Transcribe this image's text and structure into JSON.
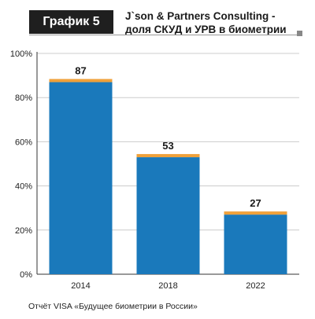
{
  "header": {
    "badge": "График 5",
    "title_line1": "J`son & Partners Consulting -",
    "title_line2": "доля СКУД и УРВ в биометрии"
  },
  "source": "Отчёт VISA «Будущее биометрии в России»",
  "colors": {
    "bar": "#1a79bb",
    "bar_cap": "#f0a13a",
    "grid": "#cccccc",
    "axis": "#333333",
    "badge_bg": "#1f1f1f"
  },
  "chart_data": {
    "type": "bar",
    "categories": [
      "2014",
      "2018",
      "2022"
    ],
    "values": [
      87,
      53,
      27
    ],
    "data_labels": [
      "87",
      "53",
      "27"
    ],
    "title": "J`son & Partners Consulting - доля СКУД и УРВ в биометрии",
    "xlabel": "",
    "ylabel": "",
    "ylim": [
      0,
      100
    ],
    "yticks": [
      "0%",
      "20%",
      "40%",
      "60%",
      "80%",
      "100%"
    ],
    "grid": true
  }
}
